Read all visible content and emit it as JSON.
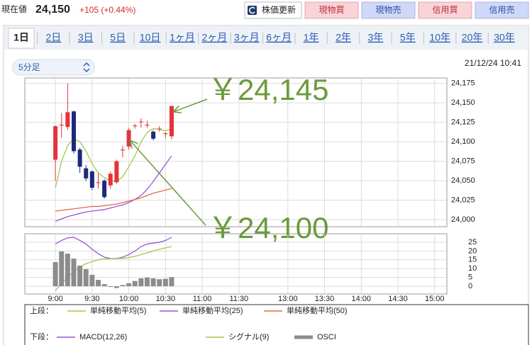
{
  "header": {
    "label": "現在値",
    "price": "24,150",
    "change": "+105 (+0.44%)"
  },
  "buttons": [
    "株価更新",
    "現物買",
    "現物売",
    "信用買",
    "信用売"
  ],
  "tabs": [
    "1日",
    "2日",
    "3日",
    "5日",
    "10日",
    "1ヶ月",
    "2ヶ月",
    "3ヶ月",
    "6ヶ月",
    "1年",
    "2年",
    "3年",
    "5年",
    "10年",
    "20年",
    "30年"
  ],
  "interval": "5分足",
  "timestamp": "21/12/24 10:41",
  "legend": {
    "upper": "上段：",
    "lower": "下段："
  },
  "chart_data": [
    {
      "type": "candlestick",
      "x": [
        0,
        1,
        2,
        3,
        4,
        5,
        6,
        7,
        8,
        9,
        10,
        11,
        12,
        13,
        14,
        15,
        16,
        17,
        18,
        19
      ],
      "open": [
        24077,
        24121,
        24119,
        24139,
        24090,
        24066,
        24062,
        24047,
        24050,
        24044,
        24048,
        24089,
        24094,
        24120,
        24126,
        24121,
        24113,
        24117,
        24110,
        24107
      ],
      "high": [
        24121,
        24137,
        24175,
        24140,
        24092,
        24070,
        24063,
        24060,
        24052,
        24062,
        24077,
        24095,
        24118,
        24123,
        24130,
        24127,
        24115,
        24120,
        24112,
        24146
      ],
      "low": [
        24050,
        24105,
        24115,
        24085,
        24060,
        24050,
        24038,
        24040,
        24027,
        24040,
        24046,
        24080,
        24090,
        24117,
        24118,
        24118,
        24102,
        24113,
        24105,
        24103
      ],
      "close": [
        24120,
        24122,
        24138,
        24088,
        24068,
        24053,
        24041,
        24048,
        24029,
        24059,
        24075,
        24090,
        24115,
        24121,
        24126,
        24122,
        24104,
        24117,
        24111,
        24146
      ],
      "up_color": "#e5323c",
      "down_color": "#1c2a7c",
      "series": [
        {
          "name": "単純移動平均(5)",
          "color": "#a9c64e",
          "values": [
            24041,
            24075,
            24095,
            24104,
            24100,
            24088,
            24072,
            24060,
            24054,
            24050,
            24049,
            24055,
            24068,
            24082,
            24100,
            24112,
            24117,
            24116,
            24114,
            24117
          ]
        },
        {
          "name": "単純移動平均(25)",
          "color": "#9b52d6",
          "values": [
            23998,
            24001,
            24004,
            24006,
            24008,
            24010,
            24011,
            24012,
            24013,
            24015,
            24017,
            24019,
            24022,
            24026,
            24031,
            24039,
            24049,
            24060,
            24071,
            24082
          ]
        },
        {
          "name": "単純移動平均(50)",
          "color": "#e06a4c",
          "values": [
            24011,
            24012,
            24013,
            24014,
            24015,
            24016,
            24017,
            24017,
            24018,
            24019,
            24020,
            24022,
            24024,
            24026,
            24028,
            24031,
            24034,
            24036,
            24038,
            24040
          ]
        }
      ],
      "annotations": [
        "￥24,145",
        "￥24,100"
      ],
      "annotation_color": "#6b9a3c",
      "xlim": [
        -5,
        64
      ],
      "ylim": [
        23991,
        24182
      ],
      "yticks": [
        {
          "value": 24000,
          "label": "24,000"
        },
        {
          "value": 24025,
          "label": "24,025"
        },
        {
          "value": 24050,
          "label": "24,050"
        },
        {
          "value": 24075,
          "label": "24,075"
        },
        {
          "value": 24100,
          "label": "24,100"
        },
        {
          "value": 24125,
          "label": "24,125"
        },
        {
          "value": 24150,
          "label": "24,150"
        },
        {
          "value": 24175,
          "label": "24,175"
        }
      ],
      "grid": true
    },
    {
      "type": "line",
      "x": [
        0,
        1,
        2,
        3,
        4,
        5,
        6,
        7,
        8,
        9,
        10,
        11,
        12,
        13,
        14,
        15,
        16,
        17,
        18,
        19
      ],
      "series": [
        {
          "name": "MACD(12,26)",
          "color": "#9b52d6",
          "values": [
            24,
            26,
            27.5,
            27.8,
            26,
            24,
            21,
            18.5,
            16.5,
            15.8,
            15.7,
            16.5,
            18,
            20,
            22.5,
            24,
            24.5,
            25,
            26,
            27.8
          ]
        },
        {
          "name": "シグナル(9)",
          "color": "#a9c64e",
          "values": [
            -2.4,
            1.5,
            5,
            8.5,
            11,
            12.8,
            14,
            15,
            15.5,
            15.7,
            15.7,
            15.8,
            16.3,
            17,
            18,
            19,
            20,
            21,
            21.8,
            22.6
          ]
        },
        {
          "name": "OSCI",
          "color": "#8c8c8c",
          "type": "bar",
          "values": [
            13.7,
            19.8,
            18.5,
            15.7,
            11.7,
            9.7,
            6.5,
            3.6,
            1.2,
            -0.4,
            -1,
            0.7,
            1.7,
            3,
            4.5,
            5,
            4.5,
            4,
            4.2,
            5.2
          ]
        }
      ],
      "xlim": [
        -5,
        64
      ],
      "xticks": [
        {
          "value": 0,
          "label": "9:00"
        },
        {
          "value": 6,
          "label": "9:30"
        },
        {
          "value": 12,
          "label": "10:00"
        },
        {
          "value": 18,
          "label": "10:30"
        },
        {
          "value": 24,
          "label": "11:00"
        },
        {
          "value": 30,
          "label": "11:30"
        },
        {
          "value": 38,
          "label": "13:00"
        },
        {
          "value": 44,
          "label": "13:30"
        },
        {
          "value": 50,
          "label": "14:00"
        },
        {
          "value": 56,
          "label": "14:30"
        },
        {
          "value": 62,
          "label": "15:00"
        }
      ],
      "ylim": [
        -4.4,
        29.8
      ],
      "yticks": [
        0,
        5,
        10,
        15,
        20,
        25
      ],
      "grid": true
    }
  ]
}
